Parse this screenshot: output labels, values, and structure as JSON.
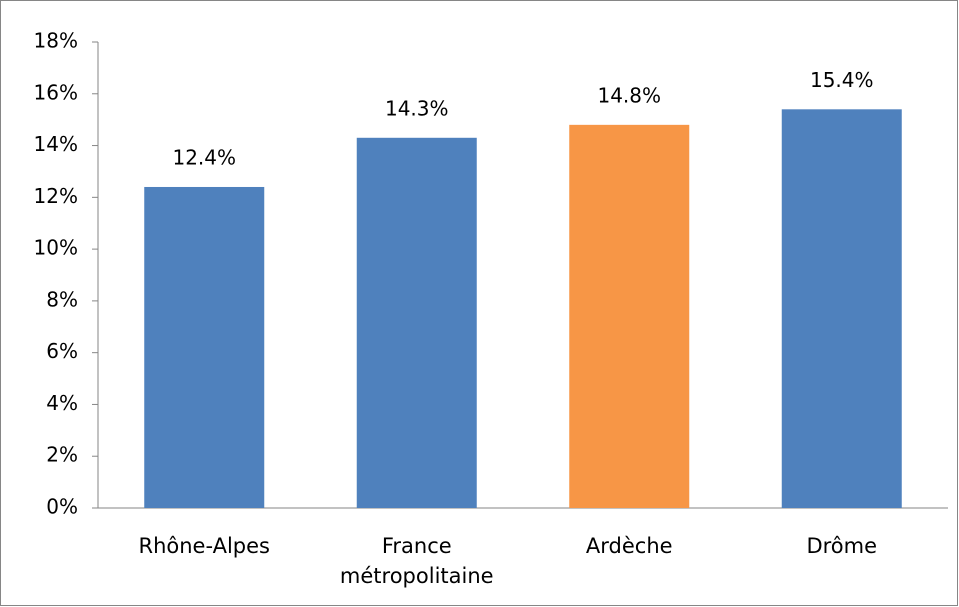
{
  "chart_data": {
    "type": "bar",
    "categories": [
      "Rhône-Alpes",
      "France métropolitaine",
      "Ardèche",
      "Drôme"
    ],
    "values": [
      12.4,
      14.3,
      14.8,
      15.4
    ],
    "value_labels": [
      "12.4%",
      "14.3%",
      "14.8%",
      "15.4%"
    ],
    "colors": [
      "#4f81bd",
      "#4f81bd",
      "#f79646",
      "#4f81bd"
    ],
    "ylim": [
      0,
      18
    ],
    "yticks": [
      {
        "value": 0,
        "label": "0%"
      },
      {
        "value": 2,
        "label": "2%"
      },
      {
        "value": 4,
        "label": "4%"
      },
      {
        "value": 6,
        "label": "6%"
      },
      {
        "value": 8,
        "label": "8%"
      },
      {
        "value": 10,
        "label": "10%"
      },
      {
        "value": 12,
        "label": "12%"
      },
      {
        "value": 14,
        "label": "14%"
      },
      {
        "value": 16,
        "label": "16%"
      },
      {
        "value": 18,
        "label": "18%"
      }
    ],
    "grid": false
  }
}
